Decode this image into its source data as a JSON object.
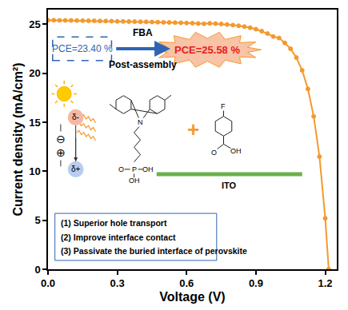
{
  "chart_data": {
    "type": "line",
    "x_label": "Voltage (V)",
    "y_label": "Current density (mA/cm²)",
    "color": "#f39a2e",
    "marker": "circle",
    "line_style": "solid",
    "x": [
      0,
      0.025,
      0.05,
      0.075,
      0.1,
      0.125,
      0.15,
      0.175,
      0.2,
      0.225,
      0.25,
      0.275,
      0.3,
      0.325,
      0.35,
      0.375,
      0.4,
      0.425,
      0.45,
      0.475,
      0.5,
      0.525,
      0.55,
      0.575,
      0.6,
      0.625,
      0.65,
      0.675,
      0.7,
      0.725,
      0.75,
      0.775,
      0.8,
      0.825,
      0.85,
      0.875,
      0.9,
      0.925,
      0.95,
      0.975,
      1.0,
      1.025,
      1.05,
      1.075,
      1.1,
      1.125,
      1.15,
      1.175,
      1.2,
      1.215
    ],
    "values": [
      25.42,
      25.41,
      25.4,
      25.4,
      25.39,
      25.38,
      25.37,
      25.36,
      25.35,
      25.34,
      25.33,
      25.32,
      25.3,
      25.29,
      25.28,
      25.27,
      25.26,
      25.25,
      25.23,
      25.22,
      25.2,
      25.19,
      25.17,
      25.15,
      25.13,
      25.11,
      25.08,
      25.05,
      25.1,
      25.07,
      25.03,
      24.98,
      24.92,
      24.85,
      24.76,
      24.65,
      24.5,
      24.3,
      24.05,
      23.75,
      23.6,
      23.1,
      22.5,
      21.6,
      20.3,
      18.4,
      15.6,
      11.5,
      5.2,
      0.0
    ],
    "xlim": [
      0,
      1.25
    ],
    "ylim": [
      0,
      26.5
    ],
    "xticks": [
      {
        "value": 0,
        "label": "0.0"
      },
      0.3,
      0.6,
      0.9,
      1.2
    ],
    "yticks": [
      0,
      5,
      10,
      15,
      20,
      25
    ],
    "grid": false,
    "annotations": {
      "pce_before": "PCE=23.40 %",
      "pce_after": "PCE=25.58 %",
      "arrow_top": "FBA",
      "arrow_bottom": "Post-assembly",
      "dipole_top": "δ-",
      "dipole_bottom": "δ+",
      "charge_top": "⊖",
      "charge_bottom": "⊕",
      "plus": "+",
      "substrate": "ITO",
      "notes": [
        "(1) Superior hole transport",
        "(2) Improve interface contact",
        "(3) Passivate the buried interface of perovskite"
      ],
      "molecule1_atoms": [
        "N",
        "P",
        "O",
        "OH",
        "OH"
      ],
      "molecule2_atoms": [
        "F",
        "O",
        "OH"
      ]
    }
  }
}
